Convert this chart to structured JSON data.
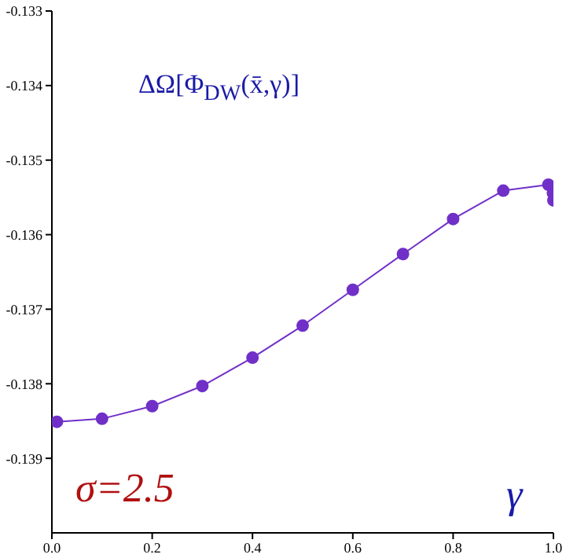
{
  "chart_data": {
    "type": "line",
    "xlabel": "γ",
    "annotations": [
      "ΔΩ[Φ$_{DW}$(x̄,γ)]",
      "σ=2.5"
    ],
    "x": [
      0.01,
      0.1,
      0.2,
      0.3,
      0.4,
      0.5,
      0.6,
      0.7,
      0.8,
      0.9,
      0.99,
      0.999,
      1.0
    ],
    "series": [
      {
        "color": "#7030c8",
        "values": [
          -0.13851,
          -0.13847,
          -0.1383,
          -0.13803,
          -0.13765,
          -0.13722,
          -0.13674,
          -0.13626,
          -0.13579,
          -0.13541,
          -0.13533,
          -0.13544,
          -0.13554
        ]
      }
    ],
    "xlim": [
      0,
      1.0
    ],
    "xticks": [
      {
        "value": 0,
        "label": "0.0"
      },
      0.2,
      0.4,
      0.6,
      0.8,
      {
        "value": 1,
        "label": "1.0"
      }
    ],
    "ylim": [
      -0.14,
      -0.133
    ],
    "yticks": [
      -0.133,
      -0.134,
      -0.135,
      -0.136,
      -0.137,
      -0.138,
      -0.139
    ],
    "marker": "circle",
    "grid": false,
    "legend": false
  }
}
